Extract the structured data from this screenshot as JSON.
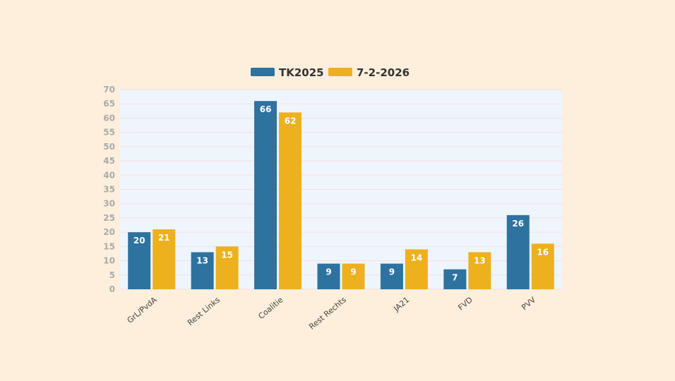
{
  "chart_data": {
    "type": "bar",
    "categories": [
      "GrL/PvdA",
      "Rest Links",
      "Coalitie",
      "Rest Rechts",
      "JA21",
      "FVD",
      "PVV"
    ],
    "series": [
      {
        "name": "TK2025",
        "values": [
          20,
          13,
          66,
          9,
          9,
          7,
          26
        ],
        "color": "#2e72a0"
      },
      {
        "name": "7-2-2026",
        "values": [
          21,
          15,
          62,
          9,
          14,
          13,
          16
        ],
        "color": "#edb11e"
      }
    ],
    "ylim": [
      0,
      70
    ],
    "ytick_step": 5,
    "yticks": [
      "0",
      "5",
      "10",
      "15",
      "20",
      "25",
      "30",
      "35",
      "40",
      "45",
      "50",
      "55",
      "60",
      "65",
      "70"
    ],
    "grid": true,
    "legend": "top-center",
    "data_labels": true
  },
  "colors": {
    "background": "#fdefdc",
    "plot_area": "#eef5fc",
    "grid": "#f7dde0"
  }
}
